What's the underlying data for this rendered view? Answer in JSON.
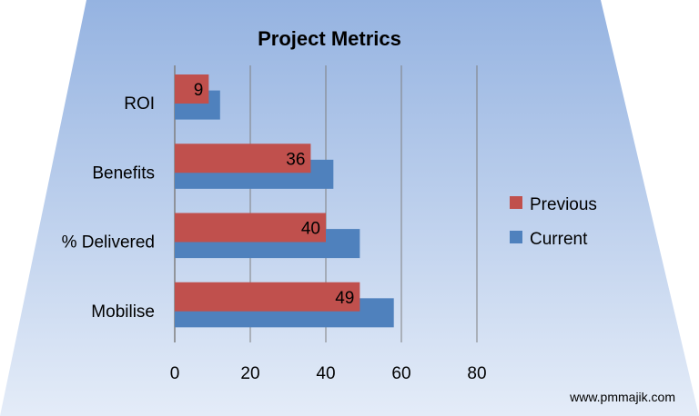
{
  "chart_data": {
    "type": "bar",
    "orientation": "horizontal",
    "title": "Project Metrics",
    "categories": [
      "ROI",
      "Benefits",
      "% Delivered",
      "Mobilise"
    ],
    "series": [
      {
        "name": "Previous",
        "color": "#c0504d",
        "values": [
          9,
          36,
          40,
          49
        ],
        "show_labels": true
      },
      {
        "name": "Current",
        "color": "#4f81bd",
        "values": [
          12,
          42,
          49,
          58
        ],
        "show_labels": false
      }
    ],
    "xlim": [
      0,
      80
    ],
    "xticks": [
      0,
      20,
      40,
      60,
      80
    ],
    "grid": true,
    "legend_position": "right"
  },
  "watermark": "www.pmmajik.com",
  "colors": {
    "background_top": "#95b3e1",
    "background_bottom": "#e4ecf8"
  }
}
